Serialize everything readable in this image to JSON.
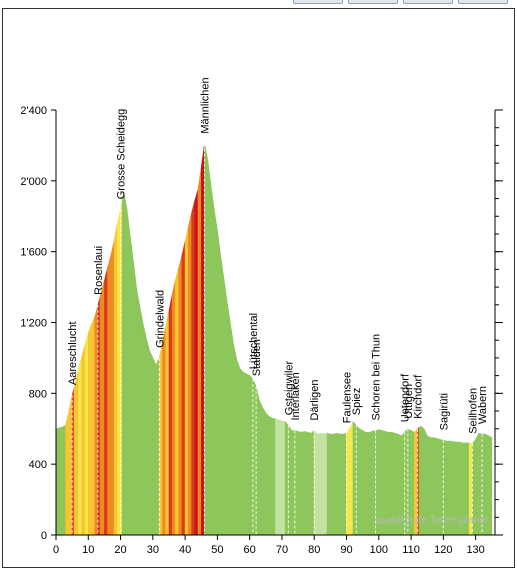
{
  "toolbar": {
    "buttons": [
      {
        "icon": "toolbar-button-icon"
      },
      {
        "icon": "toolbar-button-icon"
      },
      {
        "icon": "toolbar-button-icon"
      },
      {
        "icon": "toolbar-button-icon"
      }
    ]
  },
  "watermark": "qualdich.de Tourenplaner",
  "chart_data": {
    "type": "area",
    "xlim": [
      0,
      136
    ],
    "ylim": [
      0,
      2400
    ],
    "x_ticks": [
      0,
      10,
      20,
      30,
      40,
      50,
      60,
      70,
      80,
      90,
      100,
      110,
      120,
      130
    ],
    "y_ticks": [
      0,
      400,
      800,
      1200,
      1600,
      2000,
      2400
    ],
    "x_tick_labels": [
      "0",
      "10",
      "20",
      "30",
      "40",
      "50",
      "60",
      "70",
      "80",
      "90",
      "100",
      "110",
      "120",
      "130"
    ],
    "y_tick_labels": [
      "0",
      "400",
      "800",
      "1'200",
      "1'600",
      "2'000",
      "2'400"
    ],
    "grid": false,
    "profile": {
      "x": [
        0,
        2,
        3,
        4,
        5,
        6,
        7,
        8,
        9,
        10,
        11,
        12,
        13,
        14,
        15,
        16,
        17,
        18,
        19,
        20,
        21,
        22,
        23,
        24,
        25,
        26,
        27,
        28,
        29,
        30,
        31,
        32,
        33,
        34,
        35,
        36,
        37,
        38,
        39,
        40,
        41,
        42,
        43,
        44,
        45,
        46,
        47,
        48,
        49,
        50,
        51,
        52,
        53,
        54,
        55,
        56,
        57,
        58,
        59,
        60,
        61,
        62,
        63,
        64,
        65,
        66,
        67,
        68,
        69,
        70,
        71,
        72,
        73,
        74,
        75,
        76,
        77,
        78,
        79,
        80,
        81,
        82,
        83,
        84,
        85,
        86,
        87,
        88,
        89,
        90,
        91,
        92,
        93,
        94,
        95,
        96,
        97,
        98,
        99,
        100,
        101,
        102,
        103,
        104,
        105,
        106,
        107,
        108,
        109,
        110,
        111,
        112,
        113,
        114,
        115,
        116,
        117,
        118,
        119,
        120,
        121,
        122,
        123,
        124,
        125,
        126,
        127,
        128,
        129,
        130,
        131,
        132,
        133,
        134,
        135
      ],
      "y": [
        600,
        610,
        620,
        700,
        790,
        860,
        940,
        1010,
        1080,
        1140,
        1190,
        1230,
        1300,
        1370,
        1440,
        1510,
        1580,
        1660,
        1760,
        1840,
        1940,
        1840,
        1690,
        1540,
        1390,
        1290,
        1190,
        1110,
        1040,
        1000,
        960,
        1000,
        1090,
        1180,
        1270,
        1360,
        1440,
        1510,
        1580,
        1660,
        1740,
        1820,
        1890,
        1950,
        2080,
        2210,
        2120,
        1980,
        1840,
        1720,
        1580,
        1450,
        1320,
        1200,
        1080,
        990,
        940,
        920,
        910,
        900,
        880,
        840,
        760,
        720,
        690,
        670,
        660,
        655,
        650,
        645,
        640,
        620,
        590,
        590,
        585,
        580,
        585,
        580,
        575,
        590,
        570,
        575,
        570,
        575,
        570,
        570,
        575,
        570,
        570,
        575,
        600,
        640,
        620,
        600,
        590,
        580,
        580,
        585,
        590,
        595,
        590,
        585,
        580,
        580,
        575,
        570,
        560,
        580,
        600,
        590,
        580,
        600,
        615,
        600,
        560,
        550,
        550,
        545,
        540,
        535,
        530,
        530,
        528,
        525,
        525,
        520,
        520,
        520,
        515,
        540,
        575,
        570,
        570,
        560,
        550
      ]
    },
    "markers": [
      {
        "x": 5,
        "name": "Aareschlucht"
      },
      {
        "x": 13,
        "name": "Rosenlaui"
      },
      {
        "x": 20,
        "name": "Grosse Scheidegg"
      },
      {
        "x": 32,
        "name": "Grindelwald"
      },
      {
        "x": 46,
        "name": "Männlichen"
      },
      {
        "x": 61,
        "name": "Lütschental"
      },
      {
        "x": 62,
        "name": "Stalden"
      },
      {
        "x": 72,
        "name": "Gsteigwiler"
      },
      {
        "x": 74,
        "name": "Interlaken"
      },
      {
        "x": 80,
        "name": "Därligen"
      },
      {
        "x": 90,
        "name": "Faulensee"
      },
      {
        "x": 93,
        "name": "Spiez"
      },
      {
        "x": 99,
        "name": "Schoren bei Thun"
      },
      {
        "x": 108,
        "name": "Uetendorf"
      },
      {
        "x": 109,
        "name": "Uttigen"
      },
      {
        "x": 112,
        "name": "Kirchdorf"
      },
      {
        "x": 120,
        "name": "Sagirüti"
      },
      {
        "x": 129,
        "name": "Seilhofen"
      },
      {
        "x": 132,
        "name": "Wabern"
      }
    ],
    "gradient_colors": {
      "flat": "#8dc65a",
      "light": "#c3e2a0",
      "mild": "#f5e84a",
      "moderate": "#f7c531",
      "steep": "#ee8a22",
      "very_steep": "#d83b1a",
      "extreme": "#c4161b"
    },
    "segments": [
      {
        "from": 0,
        "to": 3,
        "color": "flat"
      },
      {
        "from": 3,
        "to": 5,
        "color": "moderate"
      },
      {
        "from": 5,
        "to": 5.6,
        "color": "very_steep"
      },
      {
        "from": 5.6,
        "to": 7,
        "color": "moderate"
      },
      {
        "from": 7,
        "to": 8,
        "color": "mild"
      },
      {
        "from": 8,
        "to": 9,
        "color": "moderate"
      },
      {
        "from": 9,
        "to": 10,
        "color": "mild"
      },
      {
        "from": 10,
        "to": 12,
        "color": "moderate"
      },
      {
        "from": 12,
        "to": 13,
        "color": "steep"
      },
      {
        "from": 13,
        "to": 13.6,
        "color": "extreme"
      },
      {
        "from": 13.6,
        "to": 15,
        "color": "steep"
      },
      {
        "from": 15,
        "to": 16,
        "color": "very_steep"
      },
      {
        "from": 16,
        "to": 18,
        "color": "steep"
      },
      {
        "from": 18,
        "to": 19,
        "color": "moderate"
      },
      {
        "from": 19,
        "to": 20.5,
        "color": "mild"
      },
      {
        "from": 20.5,
        "to": 32,
        "color": "flat"
      },
      {
        "from": 32,
        "to": 33,
        "color": "moderate"
      },
      {
        "from": 33,
        "to": 34,
        "color": "steep"
      },
      {
        "from": 34,
        "to": 35,
        "color": "moderate"
      },
      {
        "from": 35,
        "to": 36,
        "color": "very_steep"
      },
      {
        "from": 36,
        "to": 37,
        "color": "steep"
      },
      {
        "from": 37,
        "to": 38,
        "color": "moderate"
      },
      {
        "from": 38,
        "to": 39,
        "color": "steep"
      },
      {
        "from": 39,
        "to": 40,
        "color": "very_steep"
      },
      {
        "from": 40,
        "to": 41,
        "color": "moderate"
      },
      {
        "from": 41,
        "to": 42,
        "color": "steep"
      },
      {
        "from": 42,
        "to": 43,
        "color": "very_steep"
      },
      {
        "from": 43,
        "to": 44,
        "color": "extreme"
      },
      {
        "from": 44,
        "to": 45,
        "color": "steep"
      },
      {
        "from": 45,
        "to": 46,
        "color": "extreme"
      },
      {
        "from": 46,
        "to": 68,
        "color": "flat"
      },
      {
        "from": 68,
        "to": 71,
        "color": "light"
      },
      {
        "from": 71,
        "to": 80,
        "color": "flat"
      },
      {
        "from": 80,
        "to": 84,
        "color": "light"
      },
      {
        "from": 84,
        "to": 90,
        "color": "flat"
      },
      {
        "from": 90,
        "to": 92,
        "color": "mild"
      },
      {
        "from": 92,
        "to": 111,
        "color": "flat"
      },
      {
        "from": 111,
        "to": 112,
        "color": "moderate"
      },
      {
        "from": 112,
        "to": 112.5,
        "color": "very_steep"
      },
      {
        "from": 112.5,
        "to": 128,
        "color": "flat"
      },
      {
        "from": 128,
        "to": 129,
        "color": "mild"
      },
      {
        "from": 129,
        "to": 135,
        "color": "flat"
      }
    ]
  }
}
